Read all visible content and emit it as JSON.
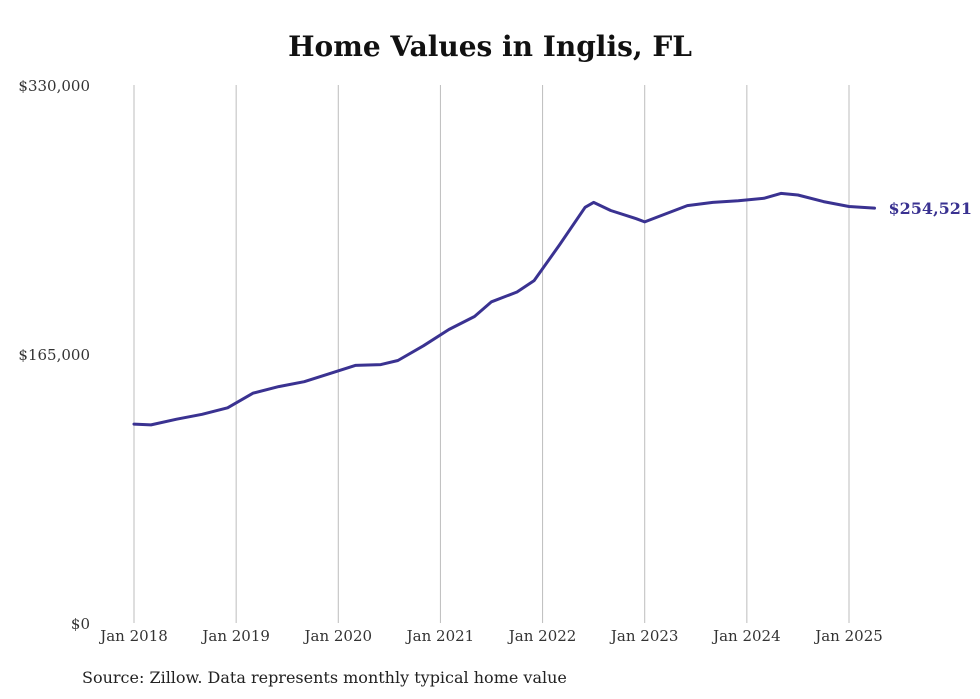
{
  "chart_data": {
    "type": "line",
    "title": "Home Values in Inglis, FL",
    "source": "Source: Zillow. Data represents monthly typical home value",
    "xlabel": "",
    "ylabel": "",
    "ylim": [
      0,
      330000
    ],
    "y_ticks": [
      {
        "value": 0,
        "label": "$0"
      },
      {
        "value": 165000,
        "label": "$165,000"
      },
      {
        "value": 330000,
        "label": "$330,000"
      }
    ],
    "x_ticks": [
      {
        "value": "2018-01",
        "label": "Jan 2018"
      },
      {
        "value": "2019-01",
        "label": "Jan 2019"
      },
      {
        "value": "2020-01",
        "label": "Jan 2020"
      },
      {
        "value": "2021-01",
        "label": "Jan 2021"
      },
      {
        "value": "2022-01",
        "label": "Jan 2022"
      },
      {
        "value": "2023-01",
        "label": "Jan 2023"
      },
      {
        "value": "2024-01",
        "label": "Jan 2024"
      },
      {
        "value": "2025-01",
        "label": "Jan 2025"
      }
    ],
    "grid": "vertical",
    "line_color": "#3a3291",
    "end_label": "$254,521",
    "series": [
      {
        "x": [
          "2018-01",
          "2018-03",
          "2018-06",
          "2018-09",
          "2018-12",
          "2019-03",
          "2019-06",
          "2019-09",
          "2019-12",
          "2020-03",
          "2020-06",
          "2020-08",
          "2020-11",
          "2021-02",
          "2021-05",
          "2021-07",
          "2021-10",
          "2021-12",
          "2022-03",
          "2022-06",
          "2022-07",
          "2022-09",
          "2022-12",
          "2023-01",
          "2023-03",
          "2023-06",
          "2023-09",
          "2023-12",
          "2024-03",
          "2024-05",
          "2024-07",
          "2024-10",
          "2025-01",
          "2025-04"
        ],
        "values": [
          122000,
          121500,
          125000,
          128000,
          132000,
          141000,
          145000,
          148000,
          153000,
          158000,
          158500,
          161000,
          170000,
          180000,
          188000,
          197000,
          203000,
          210000,
          232000,
          255000,
          258000,
          253000,
          248000,
          246000,
          250000,
          256000,
          258000,
          259000,
          260500,
          263500,
          262500,
          258500,
          255500,
          254521
        ]
      }
    ]
  }
}
